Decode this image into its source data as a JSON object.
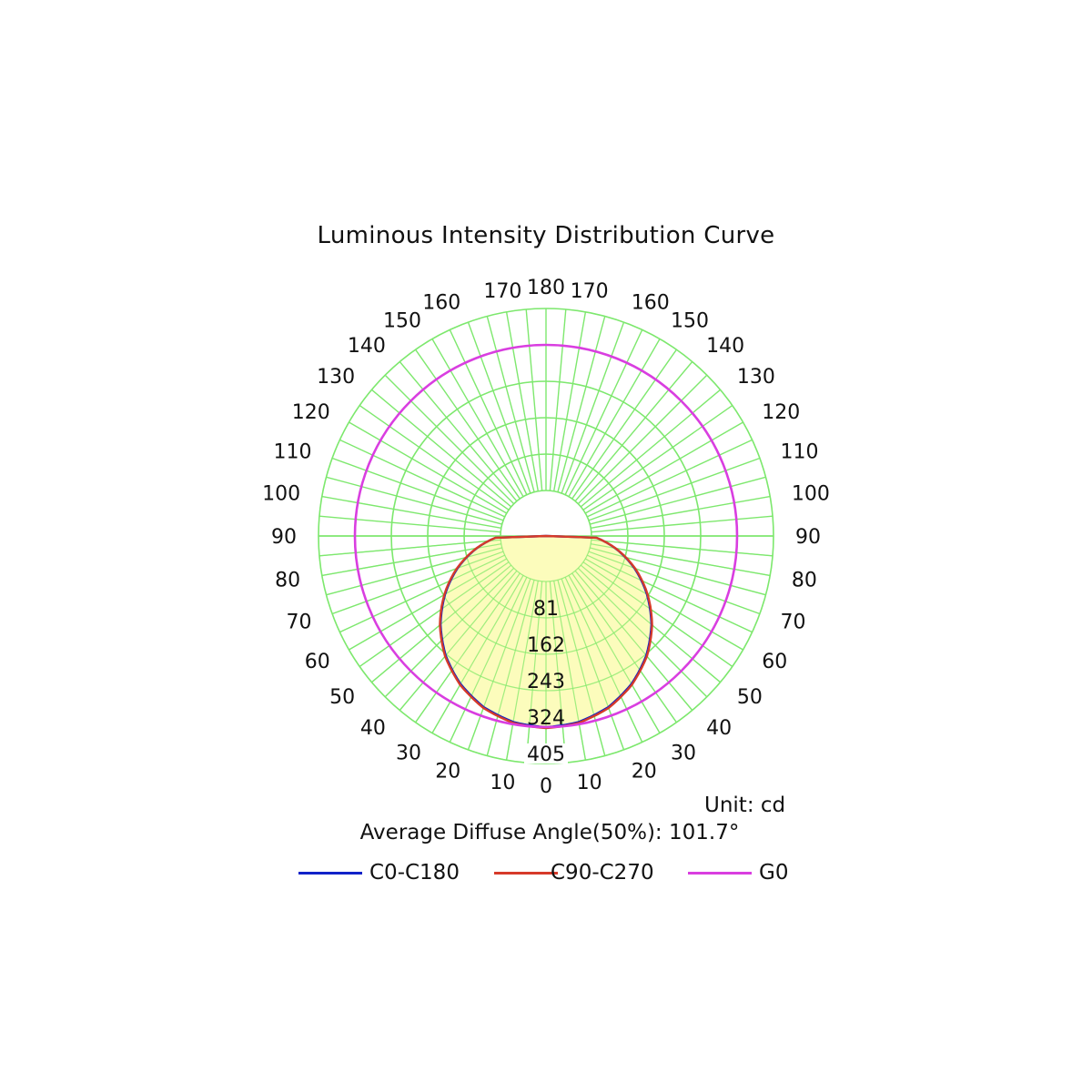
{
  "chart_data": {
    "type": "polar",
    "title": "Luminous Intensity Distribution Curve",
    "unit_label": "Unit: cd",
    "average_label": "Average Diffuse Angle(50%): 101.7°",
    "radial_ticks": [
      81,
      162,
      243,
      324,
      405
    ],
    "radial_max": 405,
    "angle_labels_left": [
      "0",
      "10",
      "20",
      "30",
      "40",
      "50",
      "60",
      "70",
      "80",
      "90",
      "100",
      "110",
      "120",
      "130",
      "140",
      "150",
      "160",
      "170",
      "180"
    ],
    "angle_labels_right": [
      "10",
      "20",
      "30",
      "40",
      "50",
      "60",
      "70",
      "80",
      "90",
      "100",
      "110",
      "120",
      "130",
      "140",
      "150",
      "160",
      "170"
    ],
    "series": [
      {
        "name": "C0-C180",
        "color": "#1022c8",
        "angles": [
          0,
          10,
          20,
          30,
          40,
          50,
          60,
          70,
          80,
          90
        ],
        "values": [
          324,
          319,
          304,
          279,
          246,
          205,
          158,
          108,
          55,
          0
        ]
      },
      {
        "name": "C90-C270",
        "color": "#d63a2a",
        "angles": [
          0,
          10,
          20,
          30,
          40,
          50,
          60,
          70,
          80,
          90
        ],
        "values": [
          326,
          321,
          306,
          281,
          248,
          207,
          160,
          110,
          56,
          0
        ]
      },
      {
        "name": "G0",
        "color": "#d93ee0",
        "angles": [
          0,
          90,
          180
        ],
        "values": [
          324,
          324,
          324
        ]
      }
    ]
  }
}
